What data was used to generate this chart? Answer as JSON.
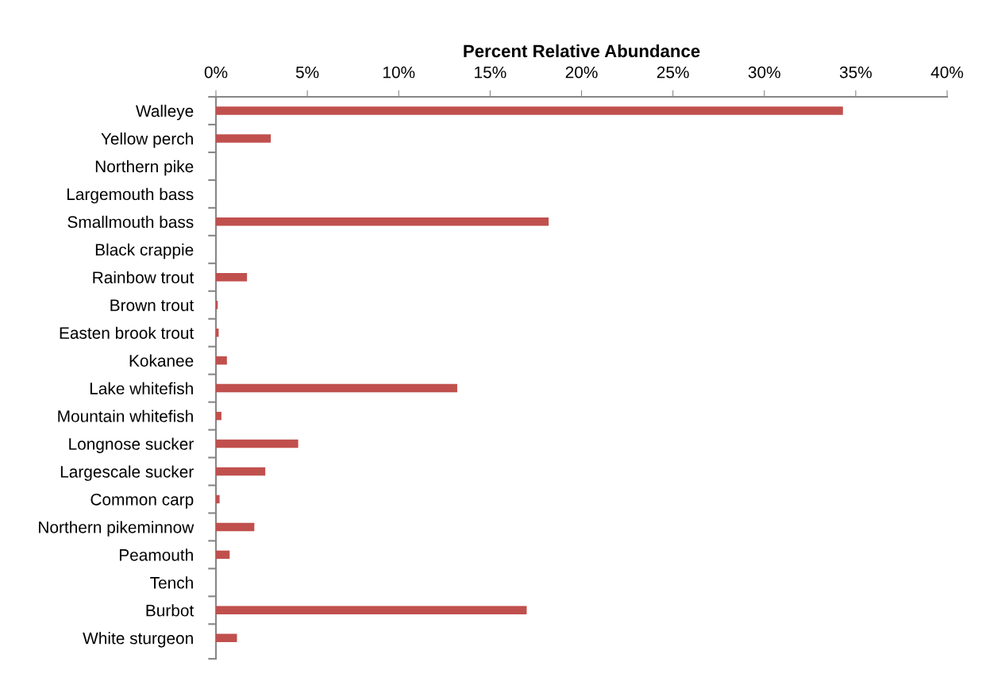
{
  "chart_data": {
    "type": "bar",
    "orientation": "horizontal",
    "title": "Percent Relative Abundance",
    "categories": [
      "Walleye",
      "Yellow perch",
      "Northern pike",
      "Largemouth bass",
      "Smallmouth bass",
      "Black crappie",
      "Rainbow trout",
      "Brown trout",
      "Easten brook trout",
      "Kokanee",
      "Lake whitefish",
      "Mountain whitefish",
      "Longnose sucker",
      "Largescale sucker",
      "Common carp",
      "Northern pikeminnow",
      "Peamouth",
      "Tench",
      "Burbot",
      "White sturgeon"
    ],
    "values": [
      34.3,
      3.0,
      0,
      0,
      18.2,
      0,
      1.7,
      0.1,
      0.15,
      0.6,
      13.2,
      0.3,
      4.5,
      2.7,
      0.2,
      2.1,
      0.75,
      0,
      17.0,
      1.15
    ],
    "color": "#c0504d",
    "xlim": [
      0,
      40
    ],
    "xticks": [
      {
        "value": 0,
        "label": "0%"
      },
      {
        "value": 5,
        "label": "5%"
      },
      {
        "value": 10,
        "label": "10%"
      },
      {
        "value": 15,
        "label": "15%"
      },
      {
        "value": 20,
        "label": "20%"
      },
      {
        "value": 25,
        "label": "25%"
      },
      {
        "value": 30,
        "label": "30%"
      },
      {
        "value": 35,
        "label": "35%"
      },
      {
        "value": 40,
        "label": "40%"
      }
    ],
    "grid": false,
    "legend": false
  }
}
